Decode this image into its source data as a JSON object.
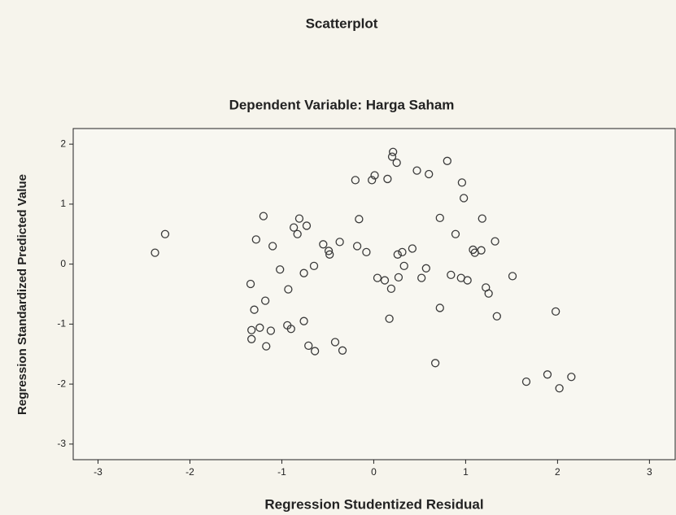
{
  "chart_data": {
    "type": "scatter",
    "title": "Scatterplot",
    "subtitle": "Dependent Variable: Harga Saham",
    "x_label": "Regression Studentized Residual",
    "y_label": "Regression Standardized Predicted Value",
    "color": "#3a3a3a",
    "grid": false,
    "xlim": [
      -3.27,
      3.28
    ],
    "xticks": [
      -3,
      -2,
      -1,
      0,
      1,
      2,
      3
    ],
    "ylim": [
      -3.26,
      2.26
    ],
    "yticks": [
      -3,
      -2,
      -1,
      0,
      1,
      2
    ],
    "x": [
      -2.38,
      -2.27,
      -1.2,
      -1.28,
      -1.1,
      -1.02,
      -1.34,
      -1.3,
      -1.18,
      -1.33,
      -1.24,
      -1.12,
      -1.33,
      -1.17,
      -0.93,
      -0.94,
      -0.9,
      -0.87,
      -0.81,
      -0.83,
      -0.73,
      -0.76,
      -0.65,
      -0.76,
      -0.71,
      -0.64,
      -0.55,
      -0.49,
      -0.48,
      -0.37,
      -0.42,
      -0.34,
      -0.18,
      -0.08,
      -0.16,
      -0.2,
      -0.02,
      0.01,
      0.15,
      0.2,
      0.21,
      0.25,
      0.04,
      0.12,
      0.19,
      0.27,
      0.17,
      0.26,
      0.33,
      0.42,
      0.47,
      0.6,
      0.52,
      0.57,
      0.72,
      0.72,
      0.67,
      0.8,
      0.84,
      0.89,
      0.96,
      0.98,
      0.95,
      1.02,
      1.08,
      1.1,
      1.18,
      1.17,
      1.22,
      1.25,
      1.32,
      1.34,
      1.51,
      1.66,
      1.89,
      1.98,
      2.02,
      2.15,
      0.31
    ],
    "values": [
      0.19,
      0.5,
      0.8,
      0.41,
      0.3,
      -0.09,
      -0.33,
      -0.76,
      -0.61,
      -1.1,
      -1.06,
      -1.11,
      -1.25,
      -1.37,
      -0.42,
      -1.02,
      -1.08,
      0.61,
      0.76,
      0.5,
      0.64,
      -0.15,
      -0.03,
      -0.95,
      -1.36,
      -1.45,
      0.33,
      0.22,
      0.16,
      0.37,
      -1.3,
      -1.44,
      0.3,
      0.2,
      0.75,
      1.4,
      1.4,
      1.48,
      1.42,
      1.79,
      1.87,
      1.69,
      -0.23,
      -0.27,
      -0.41,
      -0.22,
      -0.91,
      0.16,
      -0.03,
      0.26,
      1.56,
      1.5,
      -0.23,
      -0.07,
      0.77,
      -0.73,
      -1.65,
      1.72,
      -0.18,
      0.5,
      1.36,
      1.1,
      -0.23,
      -0.27,
      0.24,
      0.19,
      0.76,
      0.23,
      -0.39,
      -0.49,
      0.38,
      -0.87,
      -0.2,
      -1.96,
      -1.84,
      -0.79,
      -2.07,
      -1.88,
      0.2
    ]
  }
}
